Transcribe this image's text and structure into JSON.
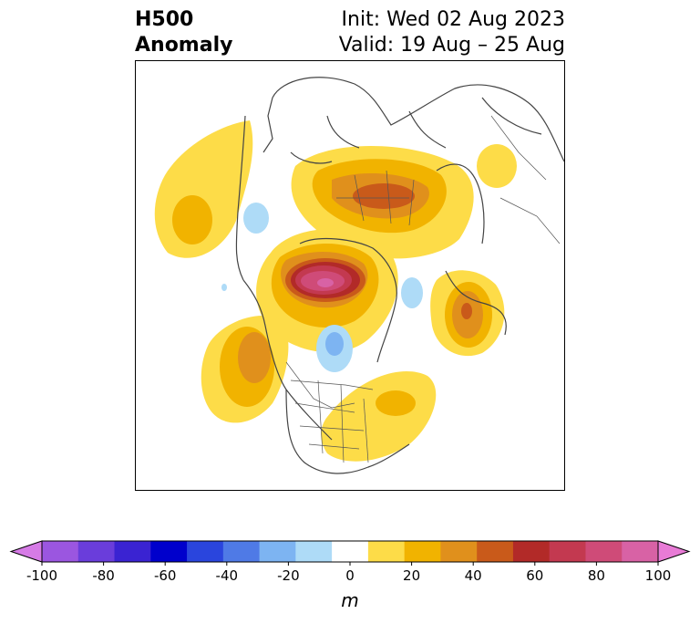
{
  "title": {
    "left_line1": "H500",
    "left_line2": "Anomaly",
    "right_line1": "Init: Wed 02 Aug 2023",
    "right_line2": "Valid: 19 Aug – 25 Aug"
  },
  "colorbar": {
    "unit": "m",
    "min": -100,
    "max": 100,
    "extend": "both",
    "ticks": [
      "-100",
      "-80",
      "-60",
      "-40",
      "-20",
      "0",
      "20",
      "40",
      "60",
      "80",
      "100"
    ],
    "colors": [
      "#d67be6",
      "#9b56e0",
      "#6a3ddb",
      "#3a23d2",
      "#0000cc",
      "#2a45dd",
      "#4f7ae6",
      "#7db4f2",
      "#aedbf7",
      "#ffffff",
      "#fddc48",
      "#f1b300",
      "#e0901c",
      "#c95a1a",
      "#b22a28",
      "#c33950",
      "#cf4b78",
      "#d862a5",
      "#e87bd6"
    ],
    "under_color": "#d67be6",
    "over_color": "#e87bd6"
  },
  "map": {
    "projection": "north-polar-stereographic",
    "field": "500 hPa height anomaly"
  }
}
